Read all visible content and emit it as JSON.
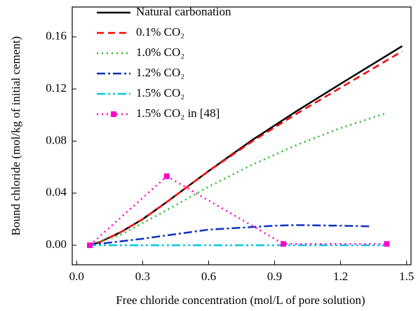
{
  "chart_data": {
    "type": "line",
    "xlabel": "Free chloride concentration (mol/L of pore solution)",
    "ylabel": "Bound chloride (mol/kg of initial cement)",
    "xlim": [
      -0.02,
      1.52
    ],
    "ylim": [
      -0.015,
      0.183
    ],
    "xticks": [
      {
        "value": 0,
        "label": "0.0"
      },
      0.3,
      0.6,
      0.9,
      1.2,
      1.5
    ],
    "yticks": [
      {
        "value": 0,
        "label": "0.00"
      },
      0.04,
      0.08,
      0.12,
      0.16
    ],
    "legend": "upper-left",
    "series": [
      {
        "name": "Natural carbonation",
        "color": "#000000",
        "dash": "solid",
        "x": [
          0.05,
          0.1,
          0.2,
          0.3,
          0.4,
          0.6,
          0.8,
          1.0,
          1.2,
          1.48
        ],
        "values": [
          0,
          0.002,
          0.01,
          0.02,
          0.032,
          0.057,
          0.081,
          0.103,
          0.124,
          0.153
        ]
      },
      {
        "name": "0.1% CO₂",
        "color": "#ff0000",
        "dash": "dashed",
        "x": [
          0.05,
          0.1,
          0.2,
          0.3,
          0.4,
          0.6,
          0.8,
          1.0,
          1.2,
          1.48
        ],
        "values": [
          0,
          0.002,
          0.01,
          0.02,
          0.032,
          0.057,
          0.08,
          0.101,
          0.121,
          0.149
        ]
      },
      {
        "name": "1.0% CO₂",
        "color": "#22bb22",
        "dash": "dotted",
        "x": [
          0.05,
          0.2,
          0.4,
          0.6,
          0.8,
          1.0,
          1.2,
          1.4
        ],
        "values": [
          0,
          0.008,
          0.026,
          0.045,
          0.062,
          0.077,
          0.09,
          0.101
        ]
      },
      {
        "name": "1.2% CO₂",
        "color": "#1030c0",
        "dash": "dashdot",
        "x": [
          0.05,
          0.3,
          0.6,
          0.9,
          1.0,
          1.2,
          1.33
        ],
        "values": [
          0,
          0.005,
          0.012,
          0.015,
          0.0155,
          0.015,
          0.0145
        ]
      },
      {
        "name": "1.5% CO₂",
        "color": "#00c8e0",
        "dash": "dashdotdot",
        "x": [
          0.05,
          1.4
        ],
        "values": [
          0,
          0
        ]
      },
      {
        "name": "1.5% CO₂ in [48]",
        "color": "#ff00cc",
        "dash": "dotted",
        "marker": "square",
        "x": [
          0.06,
          0.41,
          0.94,
          1.41
        ],
        "values": [
          0,
          0.053,
          0.001,
          0.001
        ]
      }
    ]
  }
}
